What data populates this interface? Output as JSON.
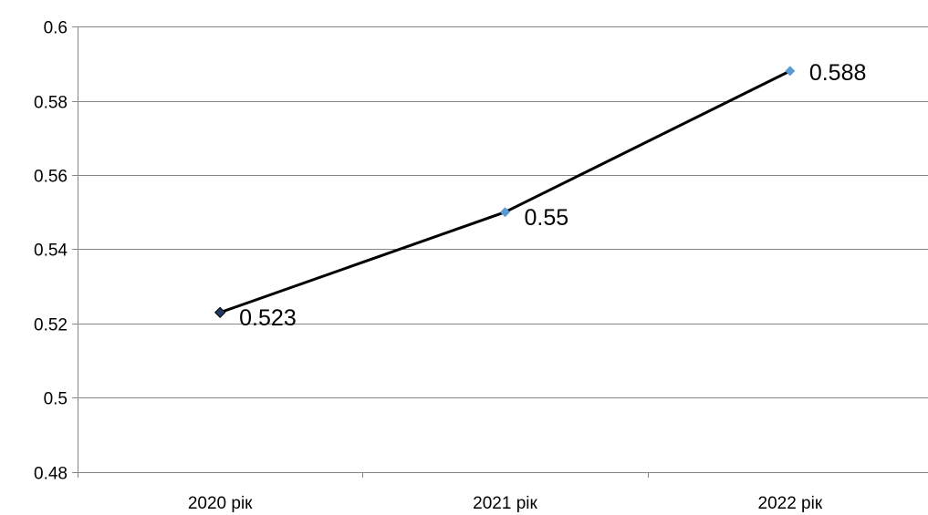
{
  "chart_data": {
    "type": "line",
    "categories": [
      "2020 рік",
      "2021 рік",
      "2022 рік"
    ],
    "series": [
      {
        "values": [
          0.523,
          0.55,
          0.588
        ],
        "labels": [
          "0.523",
          "0.55",
          "0.588"
        ]
      }
    ],
    "yticks": [
      "0.48",
      "0.5",
      "0.52",
      "0.54",
      "0.56",
      "0.58",
      "0.6"
    ],
    "ytick_values": [
      0.48,
      0.5,
      0.52,
      0.54,
      0.56,
      0.58,
      0.6
    ],
    "ylim": [
      0.48,
      0.6
    ],
    "grid": true,
    "legend": "none",
    "title": "",
    "xlabel": "",
    "ylabel": "",
    "colors": {
      "line": "#000000",
      "marker": "#5b9bd5",
      "marker_first": "#1f3864",
      "gridline": "#868686",
      "axis": "#868686"
    }
  }
}
